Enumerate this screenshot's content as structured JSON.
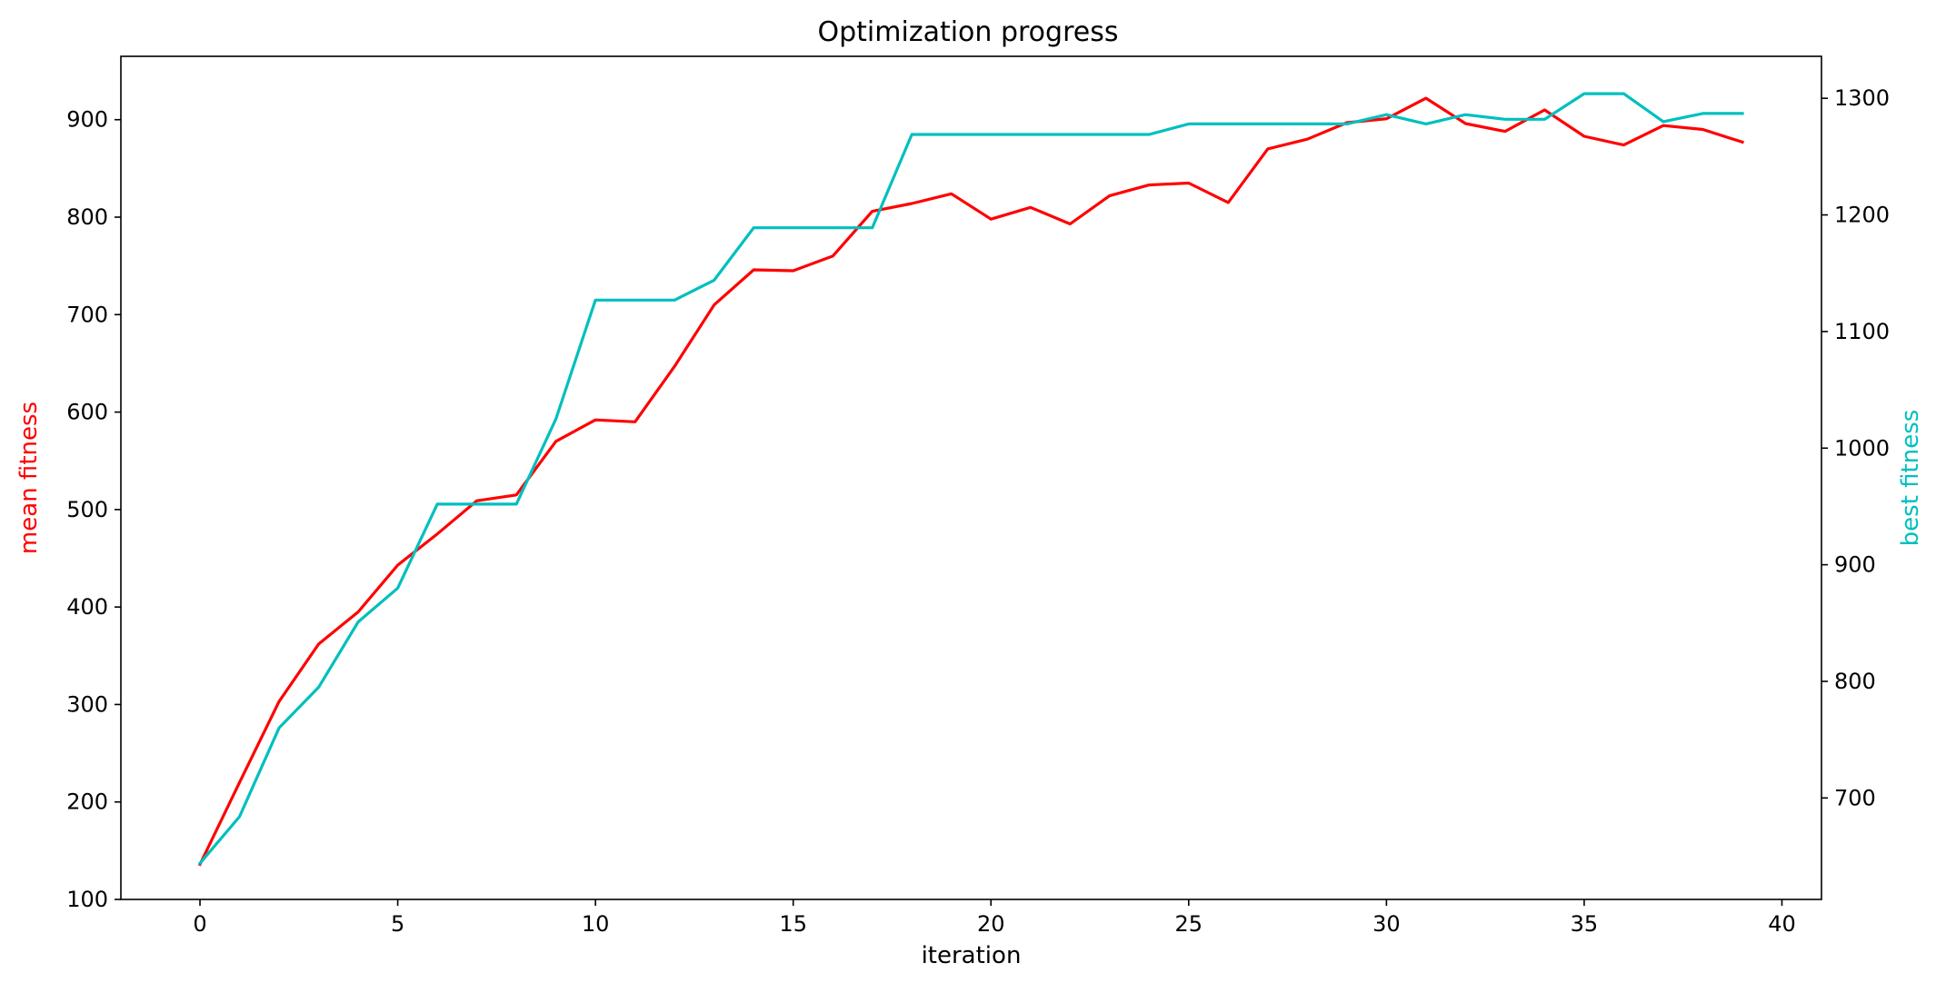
{
  "chart_data": {
    "type": "line",
    "title": "Optimization progress",
    "xlabel": "iteration",
    "ylabel": "mean fitness",
    "y2label": "best fitness",
    "xlim": [
      -2,
      41
    ],
    "ylim": [
      100,
      965
    ],
    "y2lim": [
      613,
      1336
    ],
    "xticks": [
      0,
      5,
      10,
      15,
      20,
      25,
      30,
      35,
      40
    ],
    "yticks": [
      100,
      200,
      300,
      400,
      500,
      600,
      700,
      800,
      900
    ],
    "y2ticks": [
      700,
      800,
      900,
      1000,
      1100,
      1200,
      1300
    ],
    "grid": false,
    "x": [
      0,
      1,
      2,
      3,
      4,
      5,
      6,
      7,
      8,
      9,
      10,
      11,
      12,
      13,
      14,
      15,
      16,
      17,
      18,
      19,
      20,
      21,
      22,
      23,
      24,
      25,
      26,
      27,
      28,
      29,
      30,
      31,
      32,
      33,
      34,
      35,
      36,
      37,
      38,
      39
    ],
    "series": [
      {
        "axis": "left",
        "color": "#ff0000",
        "values": [
          136,
          220,
          303,
          362,
          395,
          443,
          475,
          509,
          515,
          570,
          592,
          590,
          647,
          710,
          746,
          745,
          760,
          806,
          814,
          824,
          798,
          810,
          793,
          822,
          833,
          835,
          815,
          870,
          880,
          897,
          901,
          922,
          896,
          888,
          910,
          883,
          874,
          894,
          890,
          877
        ]
      },
      {
        "axis": "right",
        "color": "#00bfbf",
        "values": [
          644,
          684,
          760,
          795,
          851,
          880,
          952,
          952,
          952,
          1025,
          1127,
          1127,
          1127,
          1144,
          1189,
          1189,
          1189,
          1189,
          1269,
          1269,
          1269,
          1269,
          1269,
          1269,
          1269,
          1278,
          1278,
          1278,
          1278,
          1278,
          1286,
          1278,
          1286,
          1282,
          1282,
          1304,
          1304,
          1280,
          1287,
          1287
        ]
      }
    ]
  }
}
